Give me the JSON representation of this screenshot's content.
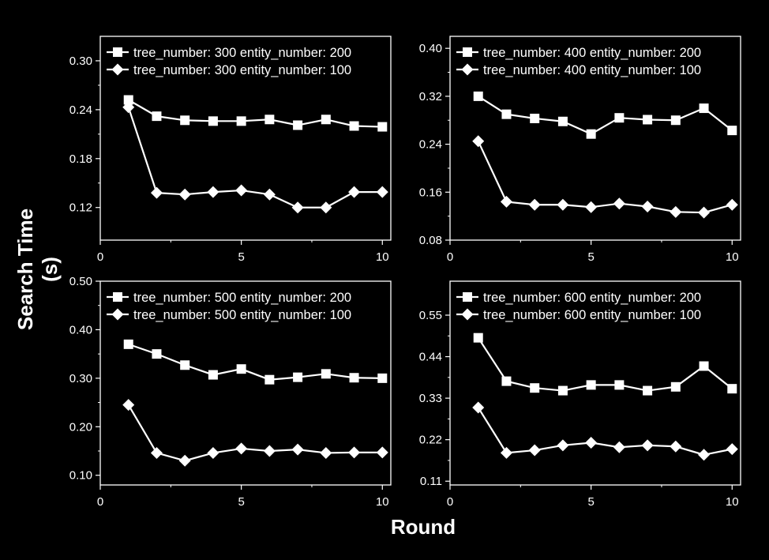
{
  "figure": {
    "ylabel": "Search Time (s)",
    "xlabel": "Round"
  },
  "colors": {
    "background": "#000000",
    "foreground": "#ffffff"
  },
  "chart_data": [
    {
      "type": "line",
      "x": [
        1,
        2,
        3,
        4,
        5,
        6,
        7,
        8,
        9,
        10
      ],
      "xlim": [
        0,
        10.3
      ],
      "xticks": [
        "0",
        "5",
        "10"
      ],
      "ylim": [
        0.08,
        0.33
      ],
      "yticks": [
        "0.12",
        "0.18",
        "0.24",
        "0.30"
      ],
      "legend_position": "top-right",
      "grid": false,
      "series": [
        {
          "name": "tree_number: 300 entity_number: 200",
          "marker": "square",
          "values": [
            0.252,
            0.232,
            0.227,
            0.226,
            0.226,
            0.228,
            0.221,
            0.228,
            0.22,
            0.219
          ]
        },
        {
          "name": "tree_number: 300 entity_number: 100",
          "marker": "diamond",
          "values": [
            0.243,
            0.138,
            0.136,
            0.139,
            0.141,
            0.136,
            0.12,
            0.12,
            0.139,
            0.139
          ]
        }
      ]
    },
    {
      "type": "line",
      "x": [
        1,
        2,
        3,
        4,
        5,
        6,
        7,
        8,
        9,
        10
      ],
      "xlim": [
        0,
        10.3
      ],
      "xticks": [
        "0",
        "5",
        "10"
      ],
      "ylim": [
        0.08,
        0.42
      ],
      "yticks": [
        "0.08",
        "0.16",
        "0.24",
        "0.32",
        "0.40"
      ],
      "legend_position": "top-right",
      "grid": false,
      "series": [
        {
          "name": "tree_number: 400 entity_number: 200",
          "marker": "square",
          "values": [
            0.32,
            0.29,
            0.283,
            0.278,
            0.257,
            0.284,
            0.281,
            0.28,
            0.3,
            0.263
          ]
        },
        {
          "name": "tree_number: 400 entity_number: 100",
          "marker": "diamond",
          "values": [
            0.245,
            0.144,
            0.139,
            0.139,
            0.135,
            0.141,
            0.136,
            0.127,
            0.126,
            0.139
          ]
        }
      ]
    },
    {
      "type": "line",
      "x": [
        1,
        2,
        3,
        4,
        5,
        6,
        7,
        8,
        9,
        10
      ],
      "xlim": [
        0,
        10.3
      ],
      "xticks": [
        "0",
        "5",
        "10"
      ],
      "ylim": [
        0.08,
        0.5
      ],
      "yticks": [
        "0.10",
        "0.20",
        "0.30",
        "0.40",
        "0.50"
      ],
      "legend_position": "top-right",
      "grid": false,
      "series": [
        {
          "name": "tree_number: 500 entity_number: 200",
          "marker": "square",
          "values": [
            0.37,
            0.35,
            0.327,
            0.307,
            0.319,
            0.297,
            0.302,
            0.309,
            0.301,
            0.3
          ]
        },
        {
          "name": "tree_number: 500 entity_number: 100",
          "marker": "diamond",
          "values": [
            0.245,
            0.146,
            0.13,
            0.146,
            0.155,
            0.15,
            0.153,
            0.146,
            0.147,
            0.147
          ]
        }
      ]
    },
    {
      "type": "line",
      "x": [
        1,
        2,
        3,
        4,
        5,
        6,
        7,
        8,
        9,
        10
      ],
      "xlim": [
        0,
        10.3
      ],
      "xticks": [
        "0",
        "5",
        "10"
      ],
      "ylim": [
        0.1,
        0.64
      ],
      "yticks": [
        "0.11",
        "0.22",
        "0.33",
        "0.44",
        "0.55"
      ],
      "legend_position": "top-right",
      "grid": false,
      "series": [
        {
          "name": "tree_number: 600 entity_number: 200",
          "marker": "square",
          "values": [
            0.49,
            0.375,
            0.357,
            0.35,
            0.365,
            0.365,
            0.35,
            0.36,
            0.415,
            0.355
          ]
        },
        {
          "name": "tree_number: 600 entity_number: 100",
          "marker": "diamond",
          "values": [
            0.305,
            0.185,
            0.192,
            0.205,
            0.212,
            0.2,
            0.205,
            0.202,
            0.18,
            0.195
          ]
        }
      ]
    }
  ]
}
